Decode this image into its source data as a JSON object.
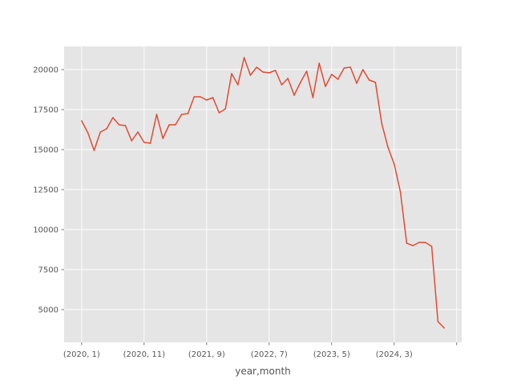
{
  "chart_data": {
    "type": "line",
    "title": "",
    "xlabel": "year,month",
    "ylabel": "",
    "grid": true,
    "legend": "none",
    "colors": {
      "line": "#e24a33",
      "plot_background": "#e5e5e5",
      "grid": "#ffffff",
      "tick_label": "#555555",
      "page_background": "#ffffff"
    },
    "xlim": [
      -2.8,
      60.8
    ],
    "ylim": [
      2950,
      21450
    ],
    "x_ticks": [
      {
        "index": 0,
        "label": "(2020, 1)"
      },
      {
        "index": 10,
        "label": "(2020, 11)"
      },
      {
        "index": 20,
        "label": "(2021, 9)"
      },
      {
        "index": 30,
        "label": "(2022, 7)"
      },
      {
        "index": 40,
        "label": "(2023, 5)"
      },
      {
        "index": 50,
        "label": "(2024, 3)"
      },
      {
        "index": 60,
        "label": ""
      }
    ],
    "y_ticks": [
      5000,
      7500,
      10000,
      12500,
      15000,
      17500,
      20000
    ],
    "y_tick_labels": [
      "5000",
      "7500",
      "10000",
      "12500",
      "15000",
      "17500",
      "20000"
    ],
    "series": [
      {
        "values": [
          16800,
          16050,
          14950,
          16100,
          16300,
          17000,
          16550,
          16500,
          15550,
          16100,
          15450,
          15400,
          17200,
          15700,
          16550,
          16550,
          17200,
          17250,
          18300,
          18300,
          18100,
          18250,
          17300,
          17550,
          19750,
          19050,
          20750,
          19650,
          20150,
          19850,
          19800,
          19950,
          19050,
          19450,
          18400,
          19200,
          19900,
          18250,
          20400,
          18950,
          19700,
          19400,
          20100,
          20150,
          19150,
          20000,
          19350,
          19200,
          16650,
          15150,
          14100,
          12350,
          9150,
          9000,
          9200,
          9200,
          8950,
          4250,
          3850
        ]
      }
    ]
  }
}
